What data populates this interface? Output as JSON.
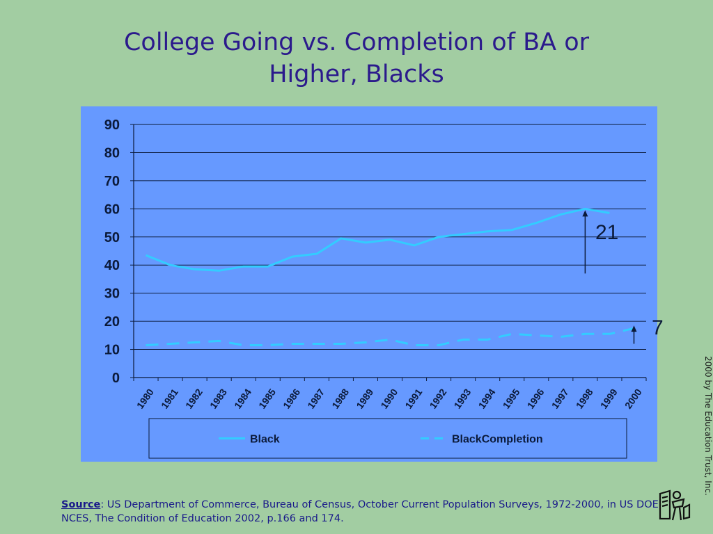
{
  "slide": {
    "title_line1": "College Going vs. Completion of BA or",
    "title_line2": "Higher, Blacks",
    "credit": "2000 by The Education Trust, Inc.",
    "source_label": "Source",
    "source_text": ":  US Department of Commerce, Bureau of Census, October Current Population Surveys, 1972-2000, in US DOE, NCES, The Condition of Education 2002, p.166 and 174."
  },
  "annotations": [
    {
      "label": "21"
    },
    {
      "label": "7"
    }
  ],
  "colors": {
    "background": "#a2cda2",
    "plot_area": "#6699ff",
    "series_line": "#33ccff",
    "axis_text": "#0b1a3a",
    "title": "#2b1a8c"
  },
  "chart_data": {
    "type": "line",
    "categories": [
      "1980",
      "1981",
      "1982",
      "1983",
      "1984",
      "1985",
      "1986",
      "1987",
      "1988",
      "1989",
      "1990",
      "1991",
      "1992",
      "1993",
      "1994",
      "1995",
      "1996",
      "1997",
      "1998",
      "1999",
      "2000"
    ],
    "series": [
      {
        "name": "Black",
        "style": "solid",
        "values": [
          43.5,
          40,
          38.5,
          38,
          39.5,
          39.5,
          43,
          44,
          49.5,
          48,
          49,
          47,
          50,
          51,
          52,
          52.5,
          55,
          58,
          60,
          58.5,
          null
        ]
      },
      {
        "name": "BlackCompletion",
        "style": "dashed",
        "values": [
          11.5,
          12,
          12.5,
          13,
          11.5,
          11.5,
          12,
          12,
          12,
          12.5,
          13.5,
          11.5,
          11.5,
          13.5,
          13.5,
          15.5,
          15,
          14.5,
          15.5,
          15.5,
          17.5
        ]
      }
    ],
    "y_ticks": [
      "0",
      "10",
      "20",
      "30",
      "40",
      "50",
      "60",
      "70",
      "80",
      "90"
    ],
    "ylim": [
      0,
      90
    ],
    "grid": true,
    "legend_position": "bottom",
    "title": "",
    "xlabel": "",
    "ylabel": ""
  }
}
